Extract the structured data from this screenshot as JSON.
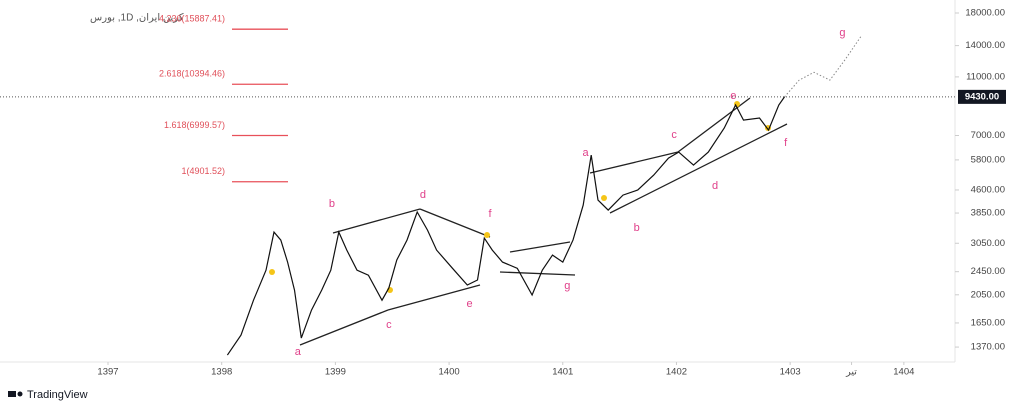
{
  "chart_data": {
    "type": "line",
    "title": "کربن ایران, 1D, بورس",
    "log_scale": true,
    "color": "#111111",
    "forecast_color": "#888888",
    "xlim": [
      1396.05,
      1404.45
    ],
    "xticks": [
      1397,
      1398,
      1399,
      1400,
      1401,
      1402,
      1403,
      {
        "value": 1403.54,
        "label": "تیر"
      },
      1404
    ],
    "ylim": [
      1240,
      19900
    ],
    "yticks": [
      {
        "value": 18000,
        "label": "18000.00"
      },
      {
        "value": 14000,
        "label": "14000.00"
      },
      {
        "value": 11000,
        "label": "11000.00"
      },
      {
        "value": 7000,
        "label": "7000.00"
      },
      {
        "value": 5800,
        "label": "5800.00"
      },
      {
        "value": 4600,
        "label": "4600.00"
      },
      {
        "value": 3850,
        "label": "3850.00"
      },
      {
        "value": 3050,
        "label": "3050.00"
      },
      {
        "value": 2450,
        "label": "2450.00"
      },
      {
        "value": 2050,
        "label": "2050.00"
      },
      {
        "value": 1650,
        "label": "1650.00"
      },
      {
        "value": 1370,
        "label": "1370.00"
      }
    ],
    "x": [
      1398.05,
      1398.17,
      1398.28,
      1398.39,
      1398.46,
      1398.52,
      1398.58,
      1398.64,
      1398.7,
      1398.79,
      1398.88,
      1398.96,
      1399.03,
      1399.1,
      1399.19,
      1399.29,
      1399.41,
      1399.47,
      1399.54,
      1399.63,
      1399.72,
      1399.81,
      1399.89,
      1400.03,
      1400.16,
      1400.25,
      1400.31,
      1400.38,
      1400.47,
      1400.6,
      1400.73,
      1400.82,
      1400.91,
      1401.0,
      1401.09,
      1401.18,
      1401.25,
      1401.31,
      1401.4,
      1401.53,
      1401.66,
      1401.8,
      1401.93,
      1402.02,
      1402.15,
      1402.28,
      1402.42,
      1402.52,
      1402.59,
      1402.73,
      1402.81,
      1402.9,
      1402.95
    ],
    "values": [
      1288,
      1503,
      1967,
      2478,
      3325,
      3126,
      2637,
      2125,
      1468,
      1822,
      2125,
      2478,
      3325,
      2894,
      2478,
      2384,
      1967,
      2159,
      2680,
      3126,
      3880,
      3376,
      2894,
      2515,
      2210,
      2297,
      3174,
      2894,
      2637,
      2515,
      2047,
      2478,
      2785,
      2637,
      3126,
      4095,
      6019,
      4254,
      3940,
      4423,
      4598,
      5160,
      5882,
      6160,
      5574,
      6160,
      7414,
      8857,
      7886,
      8012,
      7297,
      8857,
      9430
    ],
    "forecast": {
      "x": [
        1402.95,
        1403.08,
        1403.21,
        1403.35,
        1403.48,
        1403.63
      ],
      "values": [
        9430,
        10730,
        11400,
        10730,
        12510,
        15170
      ]
    },
    "last_price": {
      "value": 9430,
      "label": "9430.00"
    },
    "fib_levels": [
      {
        "value": 15887.41,
        "label": "4.236(15887.41)"
      },
      {
        "value": 10394.46,
        "label": "2.618(10394.46)"
      },
      {
        "value": 6999.57,
        "label": "1.618(6999.57)"
      },
      {
        "value": 4901.52,
        "label": "1(4901.52)"
      }
    ],
    "wave_labels": [
      {
        "text": "a",
        "x": 1398.67,
        "y": 1318
      },
      {
        "text": "b",
        "x": 1398.97,
        "y": 4126
      },
      {
        "text": "c",
        "x": 1399.47,
        "y": 1624
      },
      {
        "text": "d",
        "x": 1399.77,
        "y": 4423
      },
      {
        "text": "e",
        "x": 1400.18,
        "y": 1909
      },
      {
        "text": "f",
        "x": 1400.36,
        "y": 3819
      },
      {
        "text": "g",
        "x": 1401.04,
        "y": 2192
      },
      {
        "text": "a",
        "x": 1401.2,
        "y": 6117
      },
      {
        "text": "b",
        "x": 1401.65,
        "y": 3431
      },
      {
        "text": "c",
        "x": 1401.98,
        "y": 7025
      },
      {
        "text": "d",
        "x": 1402.34,
        "y": 4739
      },
      {
        "text": "e",
        "x": 1402.5,
        "y": 9485
      },
      {
        "text": "f",
        "x": 1402.96,
        "y": 6603
      },
      {
        "text": "g",
        "x": 1403.46,
        "y": 15400
      }
    ]
  },
  "footer": {
    "brand": "TradingView"
  }
}
